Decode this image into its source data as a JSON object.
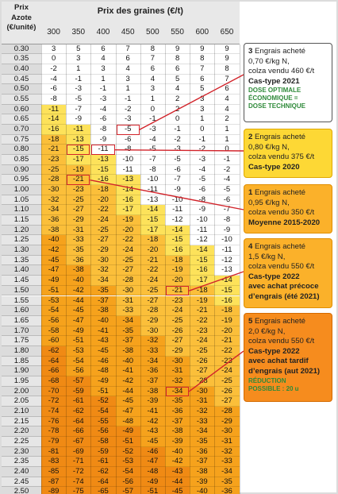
{
  "header": {
    "corner": "Prix\nAzote\n(€/unité)",
    "title": "Prix des graines  (€/t)"
  },
  "chart_data": {
    "type": "table",
    "columns": [
      "300",
      "350",
      "400",
      "450",
      "500",
      "550",
      "600",
      "650"
    ],
    "rows": [
      {
        "price": "0.30",
        "values": [
          3,
          5,
          6,
          7,
          8,
          9,
          9,
          9
        ]
      },
      {
        "price": "0.35",
        "values": [
          0,
          3,
          4,
          6,
          7,
          8,
          8,
          9
        ]
      },
      {
        "price": "0.40",
        "values": [
          -2,
          1,
          3,
          4,
          6,
          6,
          7,
          8
        ]
      },
      {
        "price": "0.45",
        "values": [
          -4,
          -1,
          1,
          3,
          4,
          5,
          6,
          7
        ]
      },
      {
        "price": "0.50",
        "values": [
          -6,
          -3,
          -1,
          1,
          3,
          4,
          5,
          6
        ]
      },
      {
        "price": "0.55",
        "values": [
          -8,
          -5,
          -3,
          -1,
          1,
          2,
          3,
          4
        ]
      },
      {
        "price": "0.60",
        "values": [
          -11,
          -7,
          -4,
          -2,
          0,
          2,
          3,
          4
        ]
      },
      {
        "price": "0.65",
        "values": [
          -14,
          -9,
          -6,
          -3,
          -1,
          0,
          1,
          2
        ]
      },
      {
        "price": "0.70",
        "values": [
          -16,
          -11,
          -8,
          -5,
          -3,
          -1,
          0,
          1
        ]
      },
      {
        "price": "0.75",
        "values": [
          -18,
          -13,
          -9,
          -6,
          -4,
          -2,
          -1,
          1
        ]
      },
      {
        "price": "0.80",
        "values": [
          -21,
          -15,
          -11,
          -8,
          -5,
          -3,
          -2,
          0
        ]
      },
      {
        "price": "0.85",
        "values": [
          -23,
          -17,
          -13,
          -10,
          -7,
          -5,
          -3,
          -1
        ]
      },
      {
        "price": "0.90",
        "values": [
          -25,
          -19,
          -15,
          -11,
          -8,
          -6,
          -4,
          -2
        ]
      },
      {
        "price": "0.95",
        "values": [
          -28,
          -21,
          -16,
          -13,
          -10,
          -7,
          -5,
          -4
        ]
      },
      {
        "price": "1.00",
        "values": [
          -30,
          -23,
          -18,
          -14,
          -11,
          -9,
          -6,
          -5
        ]
      },
      {
        "price": "1.05",
        "values": [
          -32,
          -25,
          -20,
          -16,
          -13,
          -10,
          -8,
          -6
        ]
      },
      {
        "price": "1.10",
        "values": [
          -34,
          -27,
          -22,
          -17,
          -14,
          -11,
          -9,
          -7
        ]
      },
      {
        "price": "1.15",
        "values": [
          -36,
          -29,
          -24,
          -19,
          -15,
          -12,
          -10,
          -8
        ]
      },
      {
        "price": "1.20",
        "values": [
          -38,
          -31,
          -25,
          -20,
          -17,
          -14,
          -11,
          -9
        ]
      },
      {
        "price": "1.25",
        "values": [
          -40,
          -33,
          -27,
          -22,
          -18,
          -15,
          -12,
          -10
        ]
      },
      {
        "price": "1.30",
        "values": [
          -42,
          -35,
          -29,
          -24,
          -20,
          -16,
          -14,
          -11
        ]
      },
      {
        "price": "1.35",
        "values": [
          -45,
          -36,
          -30,
          -25,
          -21,
          -18,
          -15,
          -12
        ]
      },
      {
        "price": "1.40",
        "values": [
          -47,
          -38,
          -32,
          -27,
          -22,
          -19,
          -16,
          -13
        ]
      },
      {
        "price": "1.45",
        "values": [
          -49,
          -40,
          -34,
          -28,
          -24,
          -20,
          -17,
          -14
        ]
      },
      {
        "price": "1.50",
        "values": [
          -51,
          -42,
          -35,
          -30,
          -25,
          -21,
          -18,
          -15
        ]
      },
      {
        "price": "1.55",
        "values": [
          -53,
          -44,
          -37,
          -31,
          -27,
          -23,
          -19,
          -16
        ]
      },
      {
        "price": "1.60",
        "values": [
          -54,
          -45,
          -38,
          -33,
          -28,
          -24,
          -21,
          -18
        ]
      },
      {
        "price": "1.65",
        "values": [
          -56,
          -47,
          -40,
          -34,
          -29,
          -25,
          -22,
          -19
        ]
      },
      {
        "price": "1.70",
        "values": [
          -58,
          -49,
          -41,
          -35,
          -30,
          -26,
          -23,
          -20
        ]
      },
      {
        "price": "1.75",
        "values": [
          -60,
          -51,
          -43,
          -37,
          -32,
          -27,
          -24,
          -21
        ]
      },
      {
        "price": "1.80",
        "values": [
          -62,
          -53,
          -45,
          -38,
          -33,
          -29,
          -25,
          -22
        ]
      },
      {
        "price": "1.85",
        "values": [
          -64,
          -54,
          -46,
          -40,
          -34,
          -30,
          -26,
          -23
        ]
      },
      {
        "price": "1.90",
        "values": [
          -66,
          -56,
          -48,
          -41,
          -36,
          -31,
          -27,
          -24
        ]
      },
      {
        "price": "1.95",
        "values": [
          -68,
          -57,
          -49,
          -42,
          -37,
          -32,
          -28,
          -25
        ]
      },
      {
        "price": "2.00",
        "values": [
          -70,
          -59,
          -51,
          -44,
          -38,
          -34,
          -30,
          -26
        ]
      },
      {
        "price": "2.05",
        "values": [
          -72,
          -61,
          -52,
          -45,
          -39,
          -35,
          -31,
          -27
        ]
      },
      {
        "price": "2.10",
        "values": [
          -74,
          -62,
          -54,
          -47,
          -41,
          -36,
          -32,
          -28
        ]
      },
      {
        "price": "2.15",
        "values": [
          -76,
          -64,
          -55,
          -48,
          -42,
          -37,
          -33,
          -29
        ]
      },
      {
        "price": "2.20",
        "values": [
          -78,
          -66,
          -56,
          -49,
          -43,
          -38,
          -34,
          -30
        ]
      },
      {
        "price": "2.25",
        "values": [
          -79,
          -67,
          -58,
          -51,
          -45,
          -39,
          -35,
          -31
        ]
      },
      {
        "price": "2.30",
        "values": [
          -81,
          -69,
          -59,
          -52,
          -46,
          -40,
          -36,
          -32
        ]
      },
      {
        "price": "2.35",
        "values": [
          -83,
          -71,
          -61,
          -53,
          -47,
          -42,
          -37,
          -33
        ]
      },
      {
        "price": "2.40",
        "values": [
          -85,
          -72,
          -62,
          -54,
          -48,
          -43,
          -38,
          -34
        ]
      },
      {
        "price": "2.45",
        "values": [
          -87,
          -74,
          -64,
          -56,
          -49,
          -44,
          -39,
          -35
        ]
      },
      {
        "price": "2.50",
        "values": [
          -89,
          -75,
          -65,
          -57,
          -51,
          -45,
          -40,
          -36
        ]
      }
    ],
    "highlights": [
      {
        "row": 8,
        "col": 3,
        "case": "3"
      },
      {
        "row": 10,
        "col": 1,
        "case": "2"
      },
      {
        "row": 10,
        "col": 2,
        "case": "2"
      },
      {
        "row": 13,
        "col": 1,
        "case": "1"
      },
      {
        "row": 24,
        "col": 5,
        "case": "4"
      },
      {
        "row": 34,
        "col": 5,
        "case": "5"
      }
    ]
  },
  "cases": [
    {
      "num": "3",
      "lines": [
        "Engrais acheté",
        "0,70 €/kg N,",
        "colza vendu 460 €/t"
      ],
      "bold": [
        "Cas-type 2021"
      ],
      "green": [
        "DOSE OPTIMALE",
        "ÉCONOMIQUE =",
        "DOSE TECHNIQUE"
      ],
      "bg": "#ffffff",
      "border": "#555555"
    },
    {
      "num": "2",
      "lines": [
        "Engrais acheté",
        "0,80 €/kg N,",
        "colza vendu 375 €/t"
      ],
      "bold": [
        "Cas-type 2020"
      ],
      "green": [],
      "bg": "#fdd835",
      "border": "#e0a800"
    },
    {
      "num": "1",
      "lines": [
        "Engrais acheté",
        "0,95 €/kg N,",
        "colza vendu 350 €/t"
      ],
      "bold": [
        "Moyenne 2015-2020"
      ],
      "green": [],
      "bg": "#fbb12a",
      "border": "#e08e00"
    },
    {
      "num": "4",
      "lines": [
        "Engrais acheté",
        "1,5 €/kg N,",
        "colza vendu 550 €/t"
      ],
      "bold": [
        "Cas-type 2022",
        "avec achat précoce",
        "d’engrais (été 2021)"
      ],
      "green": [],
      "bg": "#fbb12a",
      "border": "#e08e00"
    },
    {
      "num": "5",
      "lines": [
        "Engrais acheté",
        "2,0 €/kg N,",
        "colza vendu 550 €/t"
      ],
      "bold": [
        "Cas-type 2022",
        "avec achat tardif",
        "d’engrais (aut 2021)"
      ],
      "green": [
        "RÉDUCTION",
        "POSSIBLE : 20 u"
      ],
      "bg": "#f68c1e",
      "border": "#d46a00"
    }
  ],
  "colors": {
    "header_bg": "#e8e8e8",
    "price_bg": "#dcdcdc",
    "white": "#ffffff",
    "yellow": "#fde25a",
    "orange_light": "#fbbf3a",
    "orange": "#f6a21c",
    "orange_dark": "#f08a14",
    "highlight": "#d2232a",
    "leader": "#d2232a"
  }
}
